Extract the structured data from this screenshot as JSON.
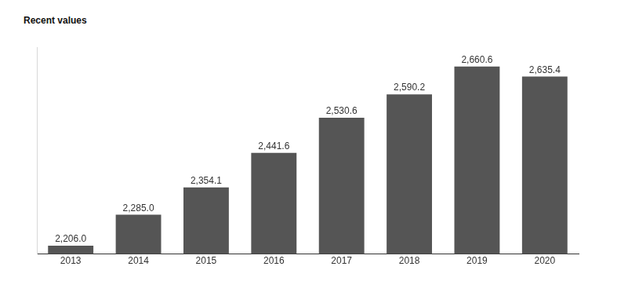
{
  "chart_data": {
    "type": "bar",
    "title": "Recent values",
    "categories": [
      "2013",
      "2014",
      "2015",
      "2016",
      "2017",
      "2018",
      "2019",
      "2020"
    ],
    "values": [
      2206.0,
      2285.0,
      2354.1,
      2441.6,
      2530.6,
      2590.2,
      2660.6,
      2635.4
    ],
    "value_labels": [
      "2,206.0",
      "2,285.0",
      "2,354.1",
      "2,441.6",
      "2,530.6",
      "2,590.2",
      "2,660.6",
      "2,635.4"
    ],
    "color": "#555555",
    "ylim": [
      2185,
      2710
    ],
    "grid": false,
    "data_labels": true,
    "tick_labels": "x"
  }
}
